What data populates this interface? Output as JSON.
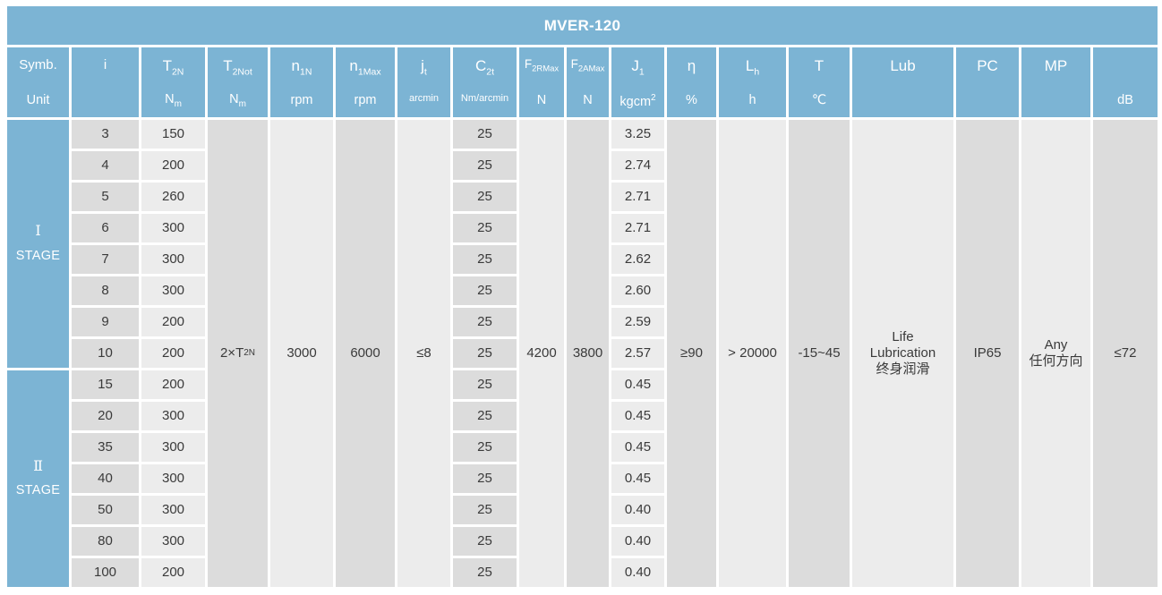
{
  "title": "MVER-120",
  "colors": {
    "header_blue": "#7cb4d4",
    "cell_dark": "#dcdcdc",
    "cell_light": "#ececec",
    "body_text": "#3a3a3a",
    "header_text": "#ffffff"
  },
  "columns": [
    {
      "id": "symb",
      "sym": "Symb.",
      "unit": "Unit"
    },
    {
      "id": "i",
      "sym": "i",
      "unit": ""
    },
    {
      "id": "t2n",
      "sym": "T",
      "sym_sub": "2N",
      "unit": "N",
      "unit_sub": "m"
    },
    {
      "id": "t2not",
      "sym": "T",
      "sym_sub": "2Not",
      "unit": "N",
      "unit_sub": "m"
    },
    {
      "id": "n1n",
      "sym": "n",
      "sym_sub": "1N",
      "unit": "rpm"
    },
    {
      "id": "n1max",
      "sym": "n",
      "sym_sub": "1Max",
      "unit": "rpm"
    },
    {
      "id": "jt",
      "sym": "j",
      "sym_sub": "t",
      "unit": "arcmin"
    },
    {
      "id": "c2t",
      "sym": "C",
      "sym_sub": "2t",
      "unit": "Nm/arcmin"
    },
    {
      "id": "f2rmax",
      "sym": "F",
      "sym_sub": "2RMax",
      "unit": "N"
    },
    {
      "id": "f2amax",
      "sym": "F",
      "sym_sub": "2AMax",
      "unit": "N"
    },
    {
      "id": "j1",
      "sym": "J",
      "sym_sub": "1",
      "unit": "kgcm",
      "unit_sup": "2"
    },
    {
      "id": "eta",
      "sym": "η",
      "unit": "%"
    },
    {
      "id": "lh",
      "sym": "L",
      "sym_sub": "h",
      "unit": "h"
    },
    {
      "id": "t",
      "sym": "T",
      "unit": "℃"
    },
    {
      "id": "lub",
      "sym": "Lub",
      "unit": ""
    },
    {
      "id": "pc",
      "sym": "PC",
      "unit": ""
    },
    {
      "id": "mp",
      "sym": "MP",
      "unit": ""
    },
    {
      "id": "db",
      "sym": "",
      "unit": "dB"
    }
  ],
  "stages": [
    {
      "numeral": "Ⅰ",
      "label": "STAGE",
      "row_count": 8
    },
    {
      "numeral": "Ⅱ",
      "label": "STAGE",
      "row_count": 7
    }
  ],
  "rows": [
    {
      "i": "3",
      "t2n": "150",
      "c2t": "25",
      "j1": "3.25"
    },
    {
      "i": "4",
      "t2n": "200",
      "c2t": "25",
      "j1": "2.74"
    },
    {
      "i": "5",
      "t2n": "260",
      "c2t": "25",
      "j1": "2.71"
    },
    {
      "i": "6",
      "t2n": "300",
      "c2t": "25",
      "j1": "2.71"
    },
    {
      "i": "7",
      "t2n": "300",
      "c2t": "25",
      "j1": "2.62"
    },
    {
      "i": "8",
      "t2n": "300",
      "c2t": "25",
      "j1": "2.60"
    },
    {
      "i": "9",
      "t2n": "200",
      "c2t": "25",
      "j1": "2.59"
    },
    {
      "i": "10",
      "t2n": "200",
      "c2t": "25",
      "j1": "2.57"
    },
    {
      "i": "15",
      "t2n": "200",
      "c2t": "25",
      "j1": "0.45"
    },
    {
      "i": "20",
      "t2n": "300",
      "c2t": "25",
      "j1": "0.45"
    },
    {
      "i": "35",
      "t2n": "300",
      "c2t": "25",
      "j1": "0.45"
    },
    {
      "i": "40",
      "t2n": "300",
      "c2t": "25",
      "j1": "0.45"
    },
    {
      "i": "50",
      "t2n": "300",
      "c2t": "25",
      "j1": "0.40"
    },
    {
      "i": "80",
      "t2n": "300",
      "c2t": "25",
      "j1": "0.40"
    },
    {
      "i": "100",
      "t2n": "200",
      "c2t": "25",
      "j1": "0.40"
    }
  ],
  "merged": {
    "t2not_base": "2×T",
    "t2not_sub": "2N",
    "n1n": "3000",
    "n1max": "6000",
    "jt": "≤8",
    "f2rmax": "4200",
    "f2amax": "3800",
    "eta": "≥90",
    "lh": "> 20000",
    "t": "-15~45",
    "lub_lines": [
      "Life",
      "Lubrication",
      "终身润滑"
    ],
    "pc": "IP65",
    "mp_lines": [
      "Any",
      "任何方向"
    ],
    "db": "≤72"
  }
}
